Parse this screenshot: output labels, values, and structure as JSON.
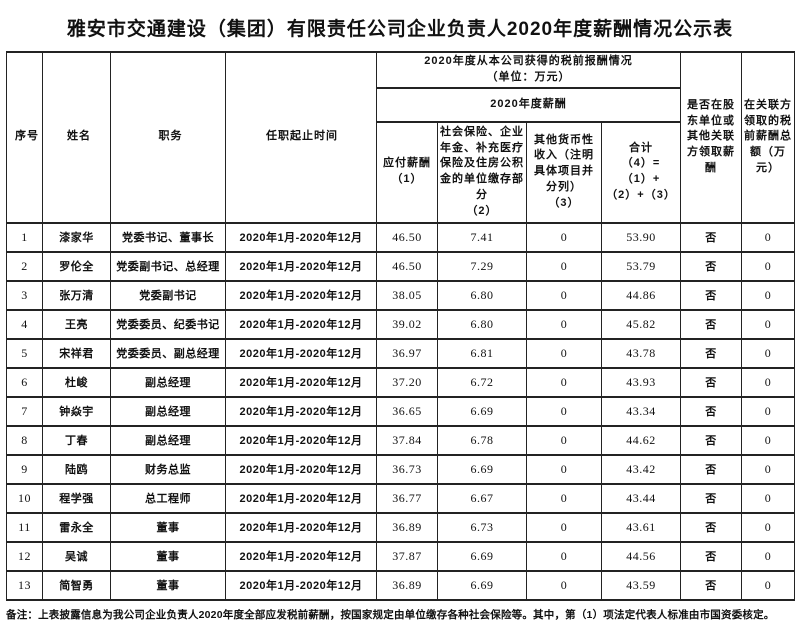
{
  "title": "雅安市交通建设（集团）有限责任公司企业负责人2020年度薪酬情况公示表",
  "table": {
    "headers": {
      "seq": "序号",
      "name": "姓名",
      "position": "职务",
      "tenure": "任职起止时间",
      "pretax_group": "2020年度从本公司获得的税前报酬情况\n（单位：万元）",
      "salary_group": "2020年度薪酬",
      "payable": "应付薪酬\n（1）",
      "insurance": "社会保险、企业年金、补充医疗保险及住房公积金的单位缴存部分\n（2）",
      "other": "其他货币性收入（注明具体项目并分列）\n（3）",
      "total": "合计\n（4）=（1）+\n（2）+（3）",
      "related": "是否在股东单位或其他关联方领取薪酬",
      "related_amount": "在关联方领取的税前薪酬总额（万元）"
    },
    "rows": [
      {
        "seq": "1",
        "name": "漆家华",
        "position": "党委书记、董事长",
        "tenure": "2020年1月-2020年12月",
        "payable": "46.50",
        "insurance": "7.41",
        "other": "0",
        "total": "53.90",
        "related": "否",
        "related_amount": "0"
      },
      {
        "seq": "2",
        "name": "罗伦全",
        "position": "党委副书记、总经理",
        "tenure": "2020年1月-2020年12月",
        "payable": "46.50",
        "insurance": "7.29",
        "other": "0",
        "total": "53.79",
        "related": "否",
        "related_amount": "0"
      },
      {
        "seq": "3",
        "name": "张万清",
        "position": "党委副书记",
        "tenure": "2020年1月-2020年12月",
        "payable": "38.05",
        "insurance": "6.80",
        "other": "0",
        "total": "44.86",
        "related": "否",
        "related_amount": "0"
      },
      {
        "seq": "4",
        "name": "王亮",
        "position": "党委委员、纪委书记",
        "tenure": "2020年1月-2020年12月",
        "payable": "39.02",
        "insurance": "6.80",
        "other": "0",
        "total": "45.82",
        "related": "否",
        "related_amount": "0"
      },
      {
        "seq": "5",
        "name": "宋祥君",
        "position": "党委委员、副总经理",
        "tenure": "2020年1月-2020年12月",
        "payable": "36.97",
        "insurance": "6.81",
        "other": "0",
        "total": "43.78",
        "related": "否",
        "related_amount": "0"
      },
      {
        "seq": "6",
        "name": "杜峻",
        "position": "副总经理",
        "tenure": "2020年1月-2020年12月",
        "payable": "37.20",
        "insurance": "6.72",
        "other": "0",
        "total": "43.93",
        "related": "否",
        "related_amount": "0"
      },
      {
        "seq": "7",
        "name": "钟焱宇",
        "position": "副总经理",
        "tenure": "2020年1月-2020年12月",
        "payable": "36.65",
        "insurance": "6.69",
        "other": "0",
        "total": "43.34",
        "related": "否",
        "related_amount": "0"
      },
      {
        "seq": "8",
        "name": "丁春",
        "position": "副总经理",
        "tenure": "2020年1月-2020年12月",
        "payable": "37.84",
        "insurance": "6.78",
        "other": "0",
        "total": "44.62",
        "related": "否",
        "related_amount": "0"
      },
      {
        "seq": "9",
        "name": "陆鸥",
        "position": "财务总监",
        "tenure": "2020年1月-2020年12月",
        "payable": "36.73",
        "insurance": "6.69",
        "other": "0",
        "total": "43.42",
        "related": "否",
        "related_amount": "0"
      },
      {
        "seq": "10",
        "name": "程学强",
        "position": "总工程师",
        "tenure": "2020年1月-2020年12月",
        "payable": "36.77",
        "insurance": "6.67",
        "other": "0",
        "total": "43.44",
        "related": "否",
        "related_amount": "0"
      },
      {
        "seq": "11",
        "name": "雷永全",
        "position": "董事",
        "tenure": "2020年1月-2020年12月",
        "payable": "36.89",
        "insurance": "6.73",
        "other": "0",
        "total": "43.61",
        "related": "否",
        "related_amount": "0"
      },
      {
        "seq": "12",
        "name": "吴诚",
        "position": "董事",
        "tenure": "2020年1月-2020年12月",
        "payable": "37.87",
        "insurance": "6.69",
        "other": "0",
        "total": "44.56",
        "related": "否",
        "related_amount": "0"
      },
      {
        "seq": "13",
        "name": "简智勇",
        "position": "董事",
        "tenure": "2020年1月-2020年12月",
        "payable": "36.89",
        "insurance": "6.69",
        "other": "0",
        "total": "43.59",
        "related": "否",
        "related_amount": "0"
      }
    ]
  },
  "footnote": "备注：上表披露信息为我公司企业负责人2020年度全部应发税前薪酬，按国家规定由单位缴存各种社会保险等。其中，第（1）项法定代表人标准由市国资委核定。"
}
